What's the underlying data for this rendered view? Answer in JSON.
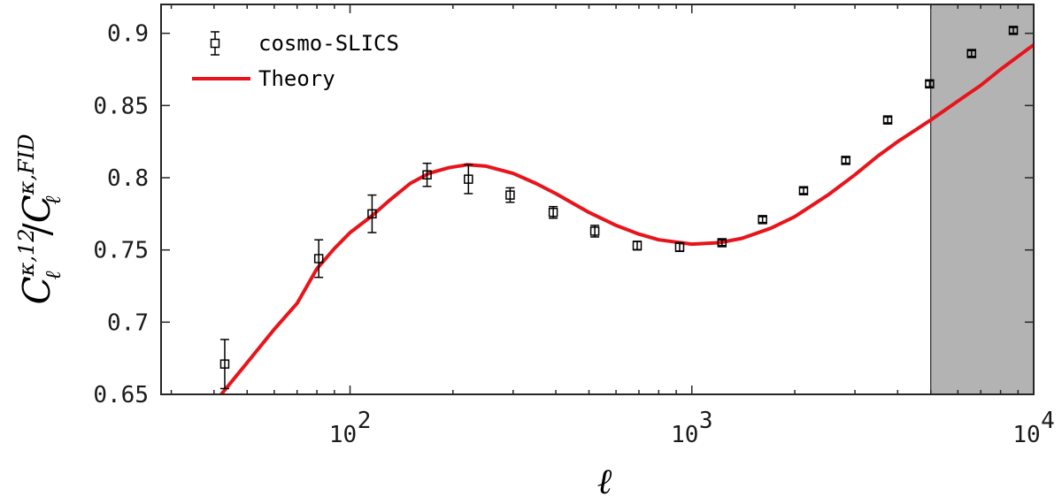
{
  "chart_data": {
    "type": "scatter",
    "xscale": "log",
    "xlim": [
      28,
      10000
    ],
    "ylim": [
      0.65,
      0.92
    ],
    "grid": false,
    "legend_position": "top-left",
    "xlabel": "ℓ",
    "ylabel": {
      "C1": "C",
      "sup1": "κ,12",
      "sub1": "ℓ",
      "slash": "/",
      "C2": "C",
      "sup2": "κ,FID",
      "sub2": "ℓ"
    },
    "yticks": [
      "0.65",
      "0.7",
      "0.75",
      "0.8",
      "0.85",
      "0.9"
    ],
    "xticks": [
      {
        "value": 100,
        "base": "10",
        "exp": "2"
      },
      {
        "value": 1000,
        "base": "10",
        "exp": "3"
      },
      {
        "value": 10000,
        "base": "10",
        "exp": "4"
      }
    ],
    "shaded_region": {
      "x_start": 5000,
      "x_end": 10000,
      "color": "#b3b3b3"
    },
    "series": [
      {
        "name": "cosmo-SLICS",
        "kind": "errorbar",
        "marker": "square",
        "color": "#000000",
        "points": [
          {
            "x": 43,
            "y": 0.671,
            "err": 0.017
          },
          {
            "x": 81,
            "y": 0.744,
            "err": 0.013
          },
          {
            "x": 116,
            "y": 0.775,
            "err": 0.013
          },
          {
            "x": 168,
            "y": 0.802,
            "err": 0.008
          },
          {
            "x": 222,
            "y": 0.799,
            "err": 0.01
          },
          {
            "x": 294,
            "y": 0.788,
            "err": 0.005
          },
          {
            "x": 393,
            "y": 0.776,
            "err": 0.004
          },
          {
            "x": 520,
            "y": 0.763,
            "err": 0.004
          },
          {
            "x": 692,
            "y": 0.753,
            "err": 0.003
          },
          {
            "x": 921,
            "y": 0.752,
            "err": 0.003
          },
          {
            "x": 1225,
            "y": 0.755,
            "err": 0.002
          },
          {
            "x": 1610,
            "y": 0.771,
            "err": 0.002
          },
          {
            "x": 2122,
            "y": 0.791,
            "err": 0.002
          },
          {
            "x": 2820,
            "y": 0.812,
            "err": 0.002
          },
          {
            "x": 3740,
            "y": 0.84,
            "err": 0.002
          },
          {
            "x": 4960,
            "y": 0.865,
            "err": 0.002
          },
          {
            "x": 6580,
            "y": 0.886,
            "err": 0.002
          },
          {
            "x": 8720,
            "y": 0.902,
            "err": 0.002
          }
        ]
      },
      {
        "name": "Theory",
        "kind": "line",
        "color": "#e8141b",
        "points": [
          {
            "x": 42,
            "y": 0.65
          },
          {
            "x": 50,
            "y": 0.672
          },
          {
            "x": 60,
            "y": 0.695
          },
          {
            "x": 70,
            "y": 0.713
          },
          {
            "x": 80,
            "y": 0.737
          },
          {
            "x": 90,
            "y": 0.751
          },
          {
            "x": 100,
            "y": 0.762
          },
          {
            "x": 115,
            "y": 0.773
          },
          {
            "x": 130,
            "y": 0.784
          },
          {
            "x": 150,
            "y": 0.796
          },
          {
            "x": 170,
            "y": 0.803
          },
          {
            "x": 195,
            "y": 0.807
          },
          {
            "x": 220,
            "y": 0.809
          },
          {
            "x": 250,
            "y": 0.808
          },
          {
            "x": 300,
            "y": 0.803
          },
          {
            "x": 350,
            "y": 0.796
          },
          {
            "x": 400,
            "y": 0.789
          },
          {
            "x": 500,
            "y": 0.776
          },
          {
            "x": 600,
            "y": 0.767
          },
          {
            "x": 700,
            "y": 0.761
          },
          {
            "x": 800,
            "y": 0.757
          },
          {
            "x": 1000,
            "y": 0.754
          },
          {
            "x": 1200,
            "y": 0.755
          },
          {
            "x": 1400,
            "y": 0.758
          },
          {
            "x": 1700,
            "y": 0.765
          },
          {
            "x": 2000,
            "y": 0.773
          },
          {
            "x": 2500,
            "y": 0.788
          },
          {
            "x": 3000,
            "y": 0.802
          },
          {
            "x": 3500,
            "y": 0.815
          },
          {
            "x": 4000,
            "y": 0.825
          },
          {
            "x": 5000,
            "y": 0.84
          },
          {
            "x": 6000,
            "y": 0.853
          },
          {
            "x": 7000,
            "y": 0.864
          },
          {
            "x": 8000,
            "y": 0.875
          },
          {
            "x": 9000,
            "y": 0.884
          },
          {
            "x": 10000,
            "y": 0.892
          }
        ]
      }
    ]
  }
}
